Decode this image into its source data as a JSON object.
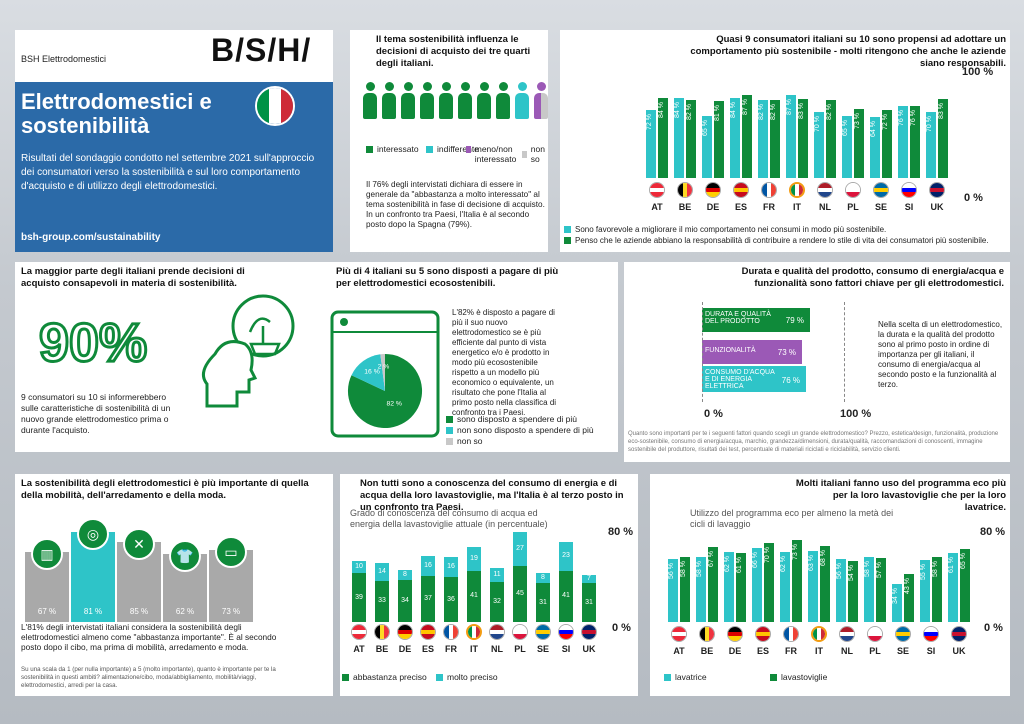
{
  "brand": {
    "company": "BSH Elettrodomestici",
    "logo": "B/S/H/"
  },
  "hero": {
    "title": "Elettrodomestici e sostenibilità",
    "intro": "Risultati del sondaggio condotto nel settembre 2021 sull'approccio dei consumatori verso la sostenibilità e sul loro comportamento d'acquisto e di utilizzo degli elettrodomestici.",
    "link": "bsh-group.com/sustainability"
  },
  "colors": {
    "green": "#0f8a3a",
    "teal": "#2ec4c8",
    "purple": "#9b59b6",
    "grey": "#c8c8c8",
    "blue": "#1e6fb0"
  },
  "p1": {
    "title": "Il tema sostenibilità influenza le decisioni di acquisto dei tre quarti degli italiani.",
    "legend": [
      "interessato",
      "indifferente",
      "meno/non interessato",
      "non so"
    ],
    "text": "Il 76% degli intervistati dichiara di essere in generale da \"abbastanza a molto interessato\" al tema sostenibilità in fase di decisione di acquisto. In un confronto tra Paesi, l'Italia è al secondo posto dopo la Spagna (79%)."
  },
  "p2": {
    "title": "Quasi 9 consumatori italiani su 10 sono propensi ad adottare un comportamento più sostenibile - molti ritengono che anche le aziende siano responsabili.",
    "ymax": "100 %",
    "ymin": "0 %",
    "legend": [
      "Sono favorevole a migliorare il mio comportamento nei consumi in modo più sostenibile.",
      "Penso che le aziende abbiano la responsabilità di contribuire a rendere lo stile di vita dei consumatori più sostenibile."
    ]
  },
  "countries": [
    "AT",
    "BE",
    "DE",
    "ES",
    "FR",
    "IT",
    "NL",
    "PL",
    "SE",
    "SI",
    "UK"
  ],
  "chart_p2": {
    "type": "bar",
    "categories": [
      "AT",
      "BE",
      "DE",
      "ES",
      "FR",
      "IT",
      "NL",
      "PL",
      "SE",
      "SI",
      "UK"
    ],
    "series": [
      {
        "name": "Sono favorevole",
        "values": [
          72,
          84,
          65,
          84,
          82,
          87,
          70,
          65,
          64,
          76,
          70
        ]
      },
      {
        "name": "Penso che le aziende",
        "values": [
          84,
          82,
          81,
          87,
          82,
          83,
          82,
          73,
          72,
          76,
          83
        ]
      }
    ],
    "ylim": [
      0,
      100
    ]
  },
  "p3": {
    "title": "La maggior parte degli italiani prende decisioni di acquisto consapevoli in materia di sostenibilità.",
    "big": "90%",
    "text": "9 consumatori su 10 si informerebbero sulle caratteristiche di sostenibilità di un nuovo grande elettrodomestico prima o durante l'acquisto."
  },
  "p4": {
    "title": "Più di 4 italiani su 5 sono disposti a pagare di più per elettrodomestici ecosostenibili.",
    "text": "L'82% è disposto a pagare di più il suo nuovo elettrodomestico se è più efficiente dal punto di vista energetico e/o è prodotto in modo più ecosostenibile rispetto a un modello più economico o equivalente, un risultato che pone l'Italia al primo posto nella classifica di confronto tra i Paesi.",
    "pie": [
      {
        "label": "sono disposto a spendere di più",
        "value": 82
      },
      {
        "label": "non sono disposto a spendere di più",
        "value": 16
      },
      {
        "label": "non so",
        "value": 2
      }
    ],
    "pielabels": [
      "82 %",
      "16 %",
      "2 %"
    ]
  },
  "p5": {
    "title": "Durata e qualità del prodotto, consumo di energia/acqua e funzionalità sono fattori chiave per gli elettrodomestici.",
    "bars": [
      {
        "label": "DURATA E QUALITÀ DEL PRODOTTO",
        "value": "79 %"
      },
      {
        "label": "FUNZIONALITÀ",
        "value": "73 %"
      },
      {
        "label": "CONSUMO D'ACQUA E DI ENERGIA ELETTRICA",
        "value": "76 %"
      }
    ],
    "min": "0 %",
    "max": "100 %",
    "text": "Nella scelta di un elettrodomestico, la durata e la qualità del prodotto sono al primo posto in ordine di importanza per gli italiani, il consumo di energia/acqua al secondo posto e la funzionalità al terzo.",
    "foot": "Quanto sono importanti per te i seguenti fattori quando scegli un grande elettrodomestico? Prezzo, estetica/design, funzionalità, produzione eco-sostenibile, consumo di energia/acqua, marchio, grandezza/dimensioni, durata/qualità, raccomandazioni di conoscenti, immagine sostenibile del produttore, risultati dei test, percentuale di materiali riciclati e riciclabilità, servizio clienti."
  },
  "p6": {
    "title": "La sostenibilità degli elettrodomestici è più importante di quella della mobilità, dell'arredamento e della moda.",
    "values": [
      "67 %",
      "81 %",
      "85 %",
      "62 %",
      "73 %"
    ],
    "text": "L'81% degli intervistati italiani considera la sostenibilità degli elettrodomestici almeno come \"abbastanza importante\". È al secondo posto dopo il cibo, ma prima di mobilità, arredamento e moda.",
    "foot": "Su una scala da 1 (per nulla importante) a 5 (molto importante), quanto è importante per te la sostenibilità in questi ambiti? alimentazione/cibo, moda/abbigliamento, mobilità/viaggi, elettrodomestici, arredi per la casa."
  },
  "p7": {
    "title": "Non tutti sono a conoscenza del consumo di energia e di acqua della loro lavastoviglie, ma l'Italia è al terzo posto in un confronto tra Paesi.",
    "subtitle": "Grado di conoscenza del consumo di acqua ed energia della lavastoviglie attuale (in percentuale)",
    "ymax": "80 %",
    "ymin": "0 %",
    "legend": [
      "abbastanza preciso",
      "molto preciso"
    ]
  },
  "chart_p7": {
    "type": "bar",
    "categories": [
      "AT",
      "BE",
      "DE",
      "ES",
      "FR",
      "IT",
      "NL",
      "PL",
      "SE",
      "SI",
      "UK"
    ],
    "series": [
      {
        "name": "abbastanza preciso",
        "values": [
          39,
          33,
          34,
          37,
          36,
          41,
          32,
          45,
          31,
          41,
          31
        ]
      },
      {
        "name": "molto preciso",
        "values": [
          10,
          14,
          8,
          16,
          16,
          19,
          11,
          27,
          8,
          23,
          7
        ]
      }
    ],
    "ylim": [
      0,
      80
    ]
  },
  "p8": {
    "title": "Molti italiani fanno uso del programma eco più per la loro lavastoviglie che per la loro lavatrice.",
    "subtitle": "Utilizzo del programma eco per almeno la metà dei cicli di lavaggio",
    "ymax": "80 %",
    "ymin": "0 %",
    "legend": [
      "lavatrice",
      "lavastoviglie"
    ]
  },
  "chart_p8": {
    "type": "bar",
    "categories": [
      "AT",
      "BE",
      "DE",
      "ES",
      "FR",
      "IT",
      "NL",
      "PL",
      "SE",
      "SI",
      "UK"
    ],
    "series": [
      {
        "name": "lavatrice",
        "values": [
          56,
          58,
          62,
          66,
          62,
          63,
          56,
          58,
          34,
          55,
          61
        ]
      },
      {
        "name": "lavastoviglie",
        "values": [
          58,
          67,
          61,
          70,
          73,
          68,
          54,
          57,
          43,
          58,
          65
        ]
      }
    ],
    "ylim": [
      0,
      80
    ]
  },
  "flags": {
    "AT": [
      "#ed2939",
      "#fff",
      "#ed2939",
      "h"
    ],
    "BE": [
      "#000",
      "#fdda24",
      "#ef3340",
      "v"
    ],
    "DE": [
      "#000",
      "#dd0000",
      "#ffce00",
      "h"
    ],
    "ES": [
      "#c60b1e",
      "#ffc400",
      "#c60b1e",
      "h"
    ],
    "FR": [
      "#0055a4",
      "#fff",
      "#ef4135",
      "v"
    ],
    "IT": [
      "#009246",
      "#fff",
      "#ce2b37",
      "v"
    ],
    "NL": [
      "#ae1c28",
      "#fff",
      "#21468b",
      "h"
    ],
    "PL": [
      "#fff",
      "#fff",
      "#dc143c",
      "h"
    ],
    "SE": [
      "#006aa7",
      "#fecc00",
      "#006aa7",
      "h"
    ],
    "SI": [
      "#fff",
      "#0000ff",
      "#ff0000",
      "h"
    ],
    "UK": [
      "#012169",
      "#c8102e",
      "#012169",
      "h"
    ]
  }
}
